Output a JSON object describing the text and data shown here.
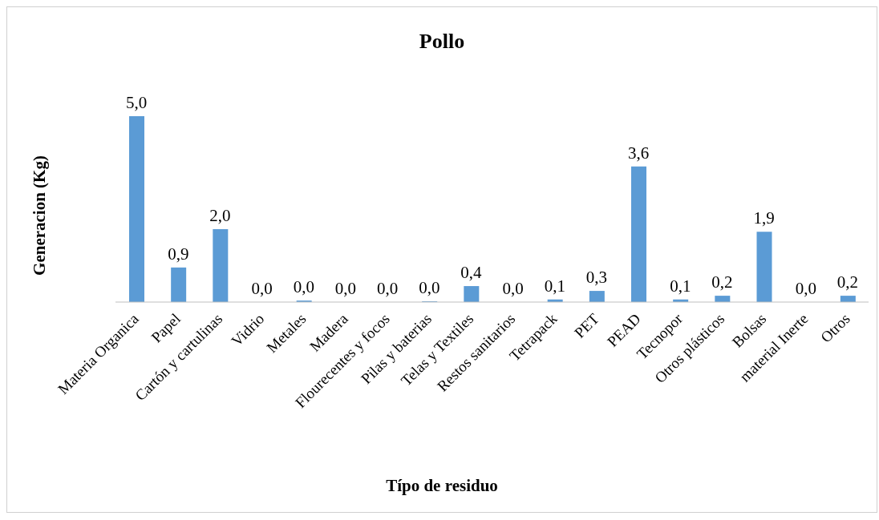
{
  "chart_data": {
    "type": "bar",
    "title": "Pollo",
    "xlabel": "Típo de residuo",
    "ylabel": "Generacion (Kg)",
    "categories": [
      "Materia Organica",
      "Papel",
      "Cartón y cartulinas",
      "Vidrio",
      "Metales",
      "Madera",
      "Flourecentes y focos",
      "Pilas y baterias",
      "Telas y Textiles",
      "Restos sanitarios",
      "Tetrapack",
      "PET",
      "PEAD",
      "Tecnopor",
      "Otros plásticos",
      "Bolsas",
      "material Inerte",
      "Otros"
    ],
    "values": [
      5.0,
      0.93,
      1.96,
      0,
      0.04,
      0,
      0,
      0.02,
      0.43,
      0,
      0.07,
      0.3,
      3.65,
      0.07,
      0.17,
      1.89,
      0,
      0.17
    ],
    "value_labels": [
      "5,0",
      "0,9",
      "2,0",
      "0,0",
      "0,0",
      "0,0",
      "0,0",
      "0,0",
      "0,4",
      "0,0",
      "0,1",
      "0,3",
      "3,6",
      "0,1",
      "0,2",
      "1,9",
      "0,0",
      "0,2"
    ],
    "color": "#5b9bd5",
    "grid": false,
    "legend": false
  }
}
